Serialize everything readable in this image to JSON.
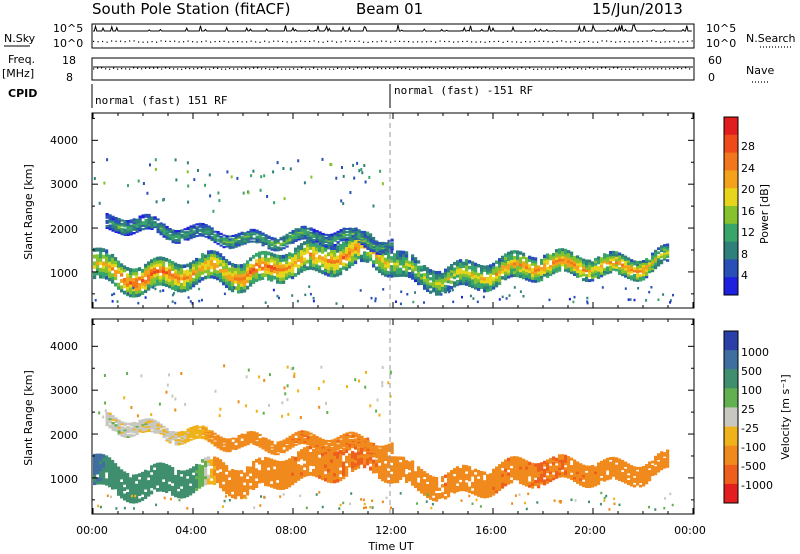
{
  "header": {
    "station": "South Pole Station (fitACF)",
    "beam": "Beam 01",
    "date": "15/Jun/2013"
  },
  "top_panels": {
    "nsky_label": "N.Sky",
    "nsky_ticks": [
      "10^5",
      "10^0"
    ],
    "nsearch_label": "N.Search",
    "freq_label": "Freq.",
    "freq_unit": "[MHz]",
    "freq_ticks": [
      "18",
      "8"
    ],
    "nave_label": "Nave",
    "nave_ticks": [
      "60",
      "0"
    ],
    "cpid_label": "CPID",
    "cpid_segments": [
      {
        "name": "normal (fast) 151 RF",
        "start_hour": 0
      },
      {
        "name": "normal (fast) -151 RF",
        "start_hour": 12
      }
    ]
  },
  "axes": {
    "x_label": "Time UT",
    "x_ticks": [
      "00:00",
      "04:00",
      "08:00",
      "12:00",
      "16:00",
      "20:00",
      "00:00"
    ],
    "y_label": "Slant Range [km]",
    "y_ticks": [
      "1000",
      "2000",
      "3000",
      "4000"
    ]
  },
  "colorbars": {
    "power": {
      "label": "Power [dB]",
      "ticks": [
        "4",
        "8",
        "12",
        "16",
        "20",
        "24",
        "28"
      ],
      "colors": [
        "#1f1fe0",
        "#2850b8",
        "#2f7f7a",
        "#3aa56a",
        "#86c22e",
        "#e6d51c",
        "#f4a21b",
        "#f2761c",
        "#ee4a1c",
        "#e11d1d"
      ]
    },
    "velocity": {
      "label": "Velocity [m s⁻¹]",
      "ticks": [
        "1000",
        "500",
        "100",
        "25",
        "-25",
        "-100",
        "-500",
        "-1000"
      ],
      "colors": [
        "#2a3fa8",
        "#3f6fa0",
        "#3f8f6f",
        "#62b050",
        "#c8c8c0",
        "#f0b21a",
        "#f08a1c",
        "#ee5e1c",
        "#e41e1e"
      ]
    }
  },
  "chart_data": [
    {
      "type": "heatmap",
      "title": "Power",
      "xlabel": "Time UT",
      "ylabel": "Slant Range [km]",
      "xlim": [
        0,
        24
      ],
      "ylim": [
        200,
        4600
      ],
      "colorbar_label": "Power [dB]",
      "colorbar_range": [
        0,
        32
      ],
      "traces": [
        {
          "role": "main echo band",
          "hours": [
            0,
            1,
            2,
            3,
            4,
            5,
            6,
            7,
            8,
            9,
            10,
            11,
            12,
            13,
            14,
            15,
            16,
            17,
            18,
            19,
            20,
            21,
            22,
            23
          ],
          "center_km": [
            1200,
            900,
            850,
            950,
            1000,
            1100,
            900,
            1100,
            1250,
            1300,
            1400,
            1500,
            1250,
            900,
            850,
            900,
            1000,
            1100,
            1200,
            1150,
            1150,
            1100,
            1150,
            1350
          ],
          "width_km": [
            700,
            650,
            650,
            650,
            600,
            650,
            650,
            650,
            650,
            700,
            700,
            700,
            600,
            550,
            550,
            600,
            600,
            600,
            550,
            500,
            500,
            500,
            450,
            400
          ],
          "power_db": [
            18,
            24,
            26,
            24,
            22,
            20,
            24,
            26,
            22,
            22,
            24,
            20,
            16,
            14,
            16,
            18,
            20,
            22,
            22,
            24,
            20,
            22,
            22,
            14
          ]
        },
        {
          "role": "upper echo band",
          "hours": [
            0.5,
            1,
            2,
            3,
            4,
            5,
            6,
            7,
            8,
            9,
            10,
            11,
            12
          ],
          "center_km": [
            2100,
            2150,
            2050,
            1950,
            1850,
            1850,
            1700,
            1750,
            1750,
            1850,
            1800,
            1700,
            1600
          ],
          "width_km": [
            350,
            350,
            350,
            300,
            300,
            300,
            300,
            300,
            300,
            300,
            300,
            300,
            250
          ],
          "power_db": [
            8,
            12,
            10,
            12,
            10,
            12,
            12,
            12,
            14,
            10,
            12,
            12,
            10
          ]
        }
      ]
    },
    {
      "type": "heatmap",
      "title": "Velocity",
      "xlabel": "Time UT",
      "ylabel": "Slant Range [km]",
      "xlim": [
        0,
        24
      ],
      "ylim": [
        200,
        4600
      ],
      "colorbar_label": "Velocity [m s⁻¹]",
      "colorbar_range": [
        -1000,
        1000
      ],
      "traces": [
        {
          "role": "main echo band",
          "hours": [
            0,
            1,
            2,
            3,
            4,
            5,
            6,
            7,
            8,
            9,
            10,
            11,
            12,
            13,
            14,
            15,
            16,
            17,
            18,
            19,
            20,
            21,
            22,
            23
          ],
          "center_km": [
            1200,
            900,
            850,
            950,
            1000,
            1100,
            900,
            1100,
            1250,
            1300,
            1400,
            1500,
            1250,
            900,
            850,
            900,
            1000,
            1100,
            1200,
            1150,
            1150,
            1100,
            1150,
            1350
          ],
          "width_km": [
            700,
            650,
            650,
            650,
            600,
            650,
            650,
            650,
            650,
            700,
            700,
            700,
            600,
            550,
            550,
            600,
            600,
            600,
            550,
            500,
            500,
            500,
            450,
            400
          ],
          "velocity": [
            600,
            200,
            150,
            150,
            150,
            -150,
            -300,
            -300,
            -400,
            -400,
            -500,
            -500,
            -300,
            -300,
            -400,
            -300,
            -400,
            -400,
            -500,
            -400,
            -400,
            -300,
            -300,
            -300
          ]
        },
        {
          "role": "upper echo band",
          "hours": [
            0.5,
            1,
            2,
            3,
            4,
            5,
            6,
            7,
            8,
            9,
            10,
            11,
            12
          ],
          "center_km": [
            2300,
            2250,
            2100,
            2050,
            1950,
            1900,
            1800,
            1800,
            1800,
            1850,
            1800,
            1750,
            1650
          ],
          "width_km": [
            350,
            350,
            300,
            300,
            300,
            300,
            300,
            300,
            300,
            300,
            300,
            300,
            250
          ],
          "velocity": [
            0,
            0,
            0,
            -25,
            -50,
            -150,
            -200,
            -300,
            -400,
            -400,
            -400,
            -400,
            -300
          ]
        }
      ]
    }
  ]
}
